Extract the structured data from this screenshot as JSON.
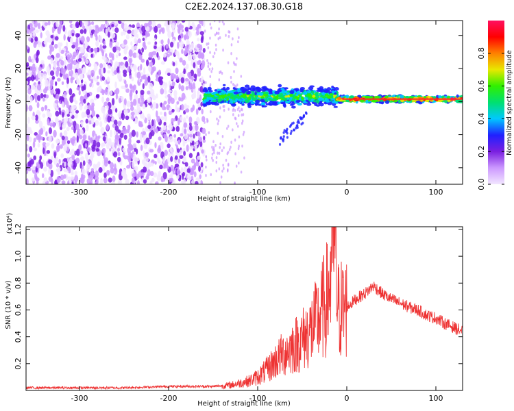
{
  "title": "C2E2.2024.137.08.30.G18",
  "colors": {
    "line": "#ee3333",
    "frame": "#000000",
    "ridge_core": "#ff2a2a"
  },
  "chart_data": [
    {
      "type": "heatmap",
      "xlabel": "Height of straight line (km)",
      "ylabel": "Frequency (Hz)",
      "xlim": [
        -360,
        130
      ],
      "ylim": [
        -50,
        49
      ],
      "xticks": [
        -300,
        -200,
        -100,
        0,
        100
      ],
      "yticks": [
        -40,
        -20,
        0,
        20,
        40
      ],
      "grid": false,
      "colorbar": {
        "label": "Normalized spectral amplitude",
        "range": [
          0,
          1
        ],
        "ticks": [
          "0.0",
          "0.2",
          "0.4",
          "0.6",
          "0.8"
        ],
        "colormap": [
          "#f2e6ff",
          "#cc99ff",
          "#7a1fe0",
          "#2020ff",
          "#00c8ff",
          "#00e070",
          "#30f000",
          "#e8e800",
          "#ff8000",
          "#ff0000",
          "#ff1060"
        ]
      },
      "regions": [
        {
          "x_range": [
            -360,
            -160
          ],
          "description": "broadband noise",
          "amplitude": 0.15
        },
        {
          "x_range": [
            -160,
            -10
          ],
          "center_freq_hz": 3,
          "spread_hz": 6,
          "amplitude": 0.6
        },
        {
          "x_range": [
            -10,
            130
          ],
          "center_freq_hz": 1.5,
          "spread_hz": 2,
          "amplitude": 0.9
        }
      ]
    },
    {
      "type": "line",
      "xlabel": "Height of straight line (km)",
      "ylabel": "SNR (10 * v/v)",
      "y_multiplier": "(x10⁴)",
      "xlim": [
        -360,
        130
      ],
      "ylim": [
        0,
        1.22
      ],
      "xticks": [
        -300,
        -200,
        -100,
        0,
        100
      ],
      "yticks": [
        "0.2",
        "0.4",
        "0.6",
        "0.8",
        "1.0",
        "1.2"
      ],
      "grid": false,
      "series": [
        {
          "x": [
            -360,
            -300,
            -250,
            -200,
            -150,
            -130,
            -110,
            -100,
            -90,
            -80,
            -70,
            -60,
            -50,
            -40,
            -30,
            -20,
            -15,
            -10,
            0,
            10,
            20,
            30,
            40,
            50,
            60,
            70,
            80,
            90,
            100,
            110,
            120,
            130
          ],
          "values": [
            0.02,
            0.02,
            0.02,
            0.03,
            0.03,
            0.04,
            0.07,
            0.1,
            0.15,
            0.22,
            0.28,
            0.33,
            0.38,
            0.45,
            0.55,
            0.72,
            1.22,
            0.6,
            0.62,
            0.68,
            0.72,
            0.78,
            0.72,
            0.68,
            0.65,
            0.62,
            0.6,
            0.56,
            0.54,
            0.5,
            0.47,
            0.44
          ]
        }
      ]
    }
  ]
}
